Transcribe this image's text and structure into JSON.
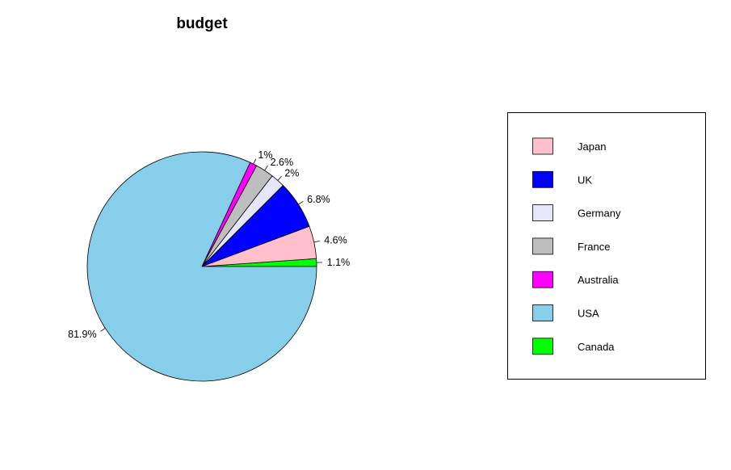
{
  "chart_data": {
    "type": "pie",
    "title": "budget",
    "start_angle_deg": 0,
    "direction": "counterclockwise",
    "slices": [
      {
        "label": "Canada",
        "value": 1.1,
        "pct_label": "1.1%",
        "color": "#00FF00"
      },
      {
        "label": "Japan",
        "value": 4.6,
        "pct_label": "4.6%",
        "color": "#FFC0CB"
      },
      {
        "label": "UK",
        "value": 6.8,
        "pct_label": "6.8%",
        "color": "#0000FF"
      },
      {
        "label": "Germany",
        "value": 2.0,
        "pct_label": "2%",
        "color": "#E6E6FA"
      },
      {
        "label": "France",
        "value": 2.6,
        "pct_label": "2.6%",
        "color": "#BEBEBE"
      },
      {
        "label": "Australia",
        "value": 1.0,
        "pct_label": "1%",
        "color": "#FF00FF"
      },
      {
        "label": "USA",
        "value": 81.9,
        "pct_label": "81.9%",
        "color": "#87CEEB"
      }
    ],
    "legend": {
      "placement": "right",
      "entries": [
        {
          "label": "Japan",
          "color": "#FFC0CB"
        },
        {
          "label": "UK",
          "color": "#0000FF"
        },
        {
          "label": "Germany",
          "color": "#E6E6FA"
        },
        {
          "label": "France",
          "color": "#BEBEBE"
        },
        {
          "label": "Australia",
          "color": "#FF00FF"
        },
        {
          "label": "USA",
          "color": "#87CEEB"
        },
        {
          "label": "Canada",
          "color": "#00FF00"
        }
      ]
    }
  }
}
